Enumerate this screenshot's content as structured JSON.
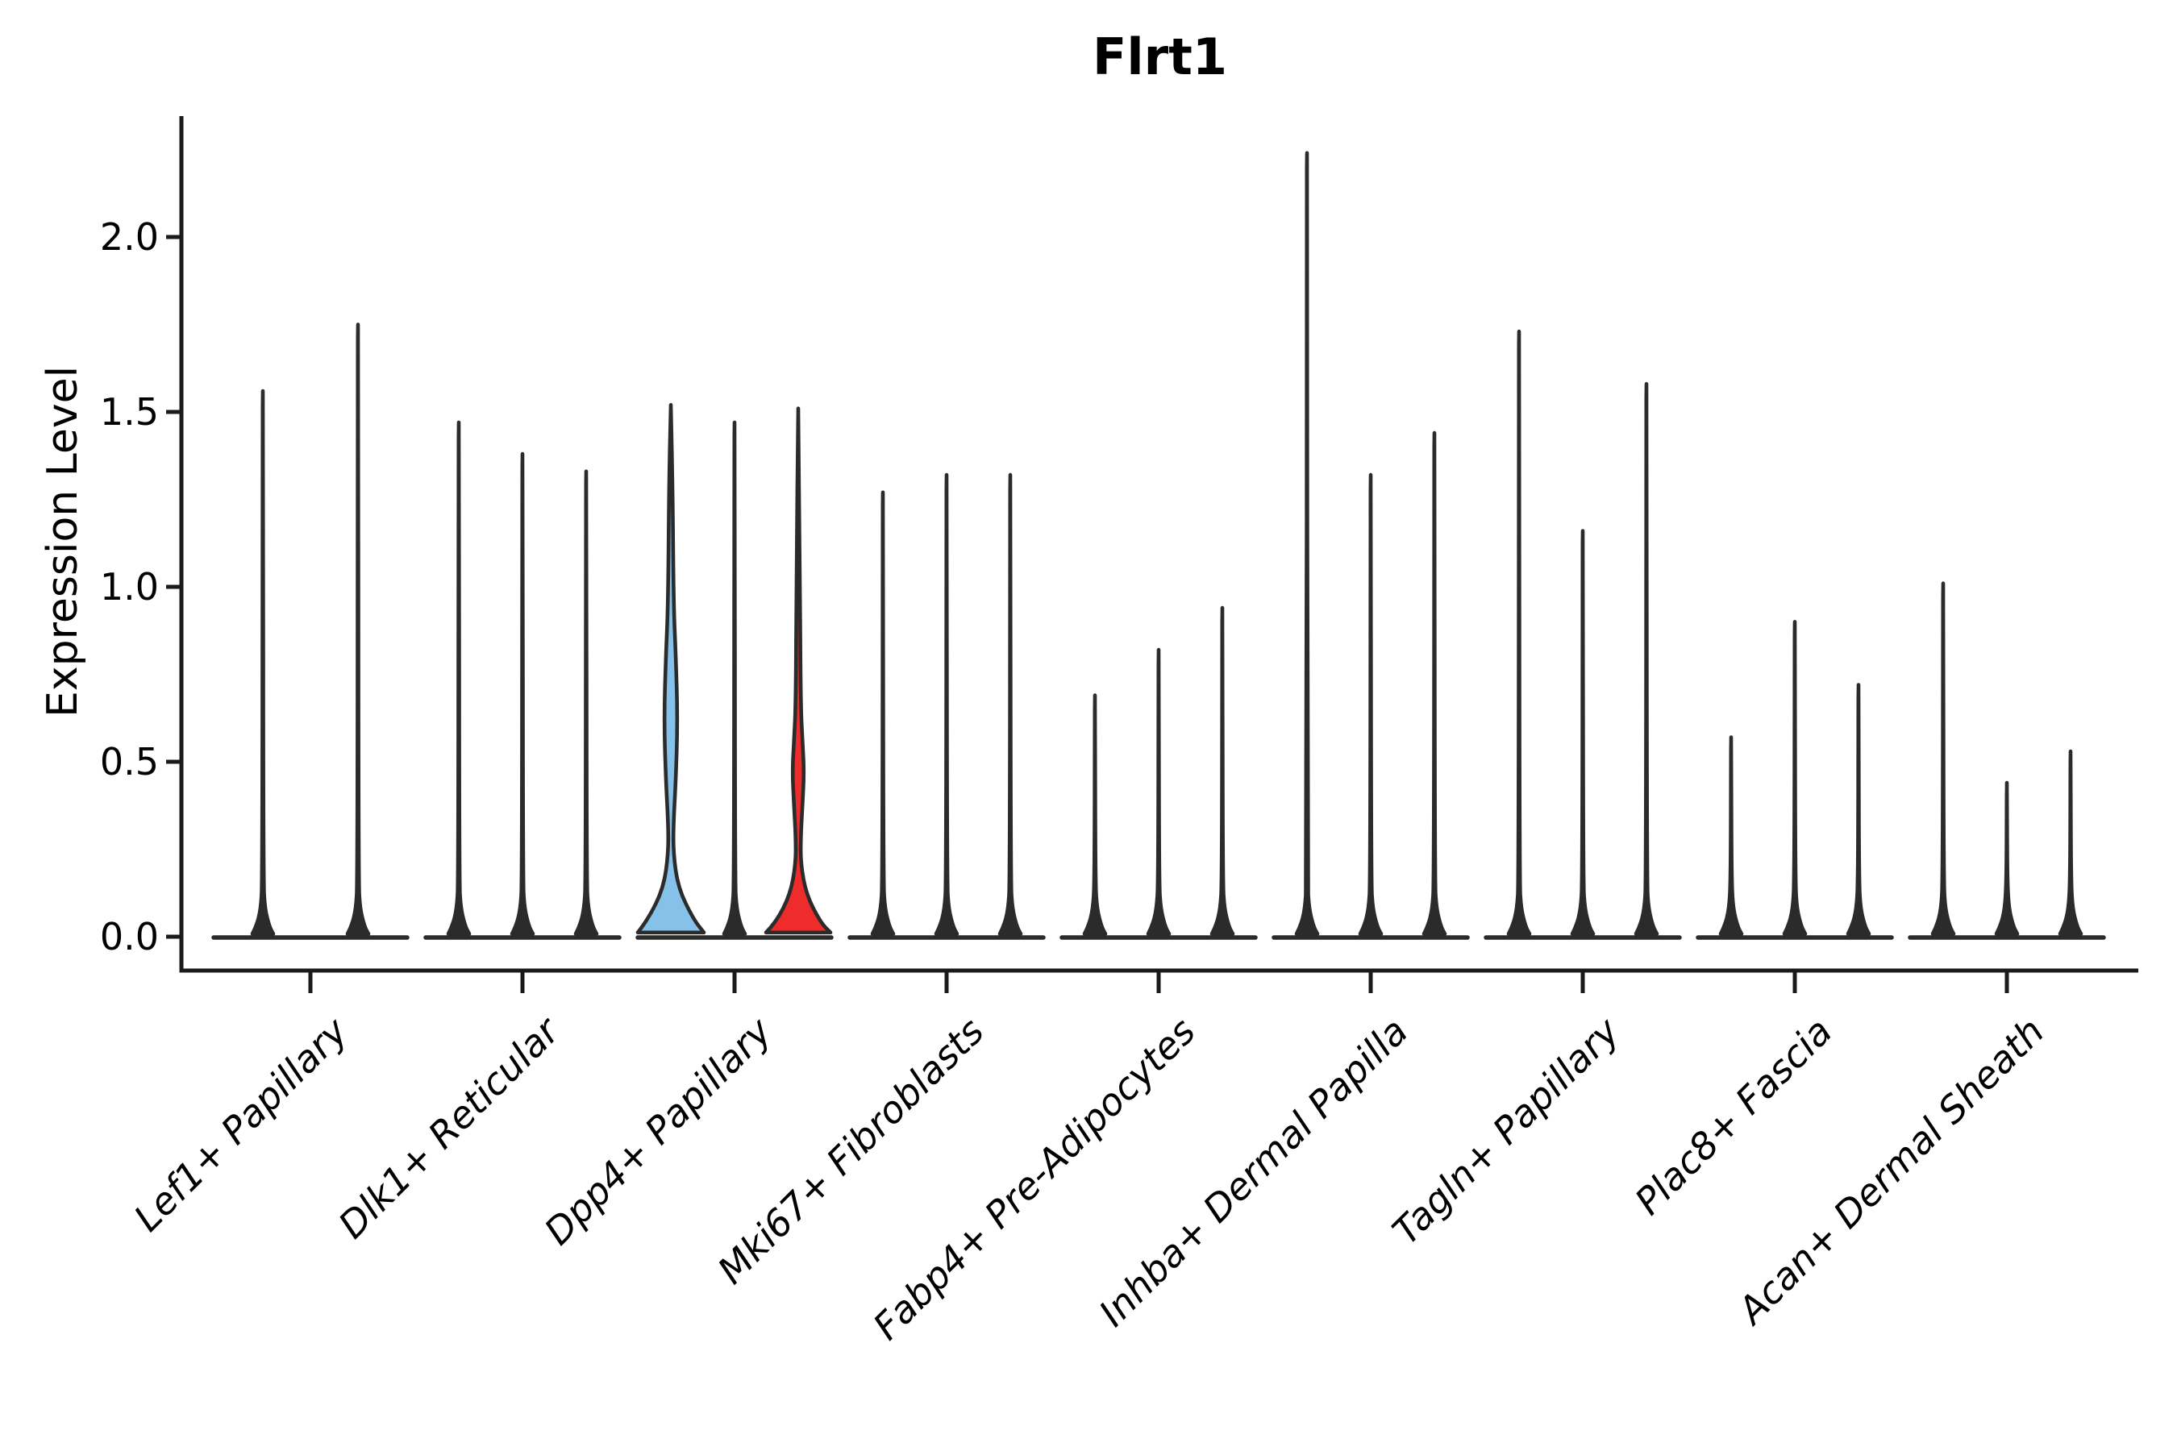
{
  "title": "Flrt1",
  "colors": {
    "background": "#ffffff",
    "axis": "#1a1a1a",
    "violin_outline": "#2b2b2b",
    "highlight_blue": "#85C1E9",
    "highlight_red": "#EE2C2C"
  },
  "chart_data": {
    "type": "violin",
    "title": "Flrt1",
    "xlabel": "",
    "ylabel": "Expression Level",
    "ytick_labels": [
      "0.0",
      "0.5",
      "1.0",
      "1.5",
      "2.0"
    ],
    "ytick_values": [
      0,
      0.5,
      1.0,
      1.5,
      2.0
    ],
    "ylim": [
      -0.1,
      2.36
    ],
    "grid": "off",
    "legend": "none",
    "categories": [
      "Lef1+ Papillary",
      "Dlk1+ Reticular",
      "Dpp4+ Papillary",
      "Mki67+ Fibroblasts",
      "Fabp4+ Pre-Adipocytes",
      "Inhba+ Dermal Papilla",
      "Tagln+ Papillary",
      "Plac8+ Fascia",
      "Acan+ Dermal Sheath"
    ],
    "groups": [
      {
        "violins": [
          {
            "max": 1.56
          },
          {
            "max": 1.75
          }
        ]
      },
      {
        "violins": [
          {
            "max": 1.47
          },
          {
            "max": 1.38
          },
          {
            "max": 1.33
          }
        ]
      },
      {
        "violins": [
          {
            "max": 1.52,
            "fill_color": "#85C1E9",
            "profile": [
              [
                1.52,
                0.001
              ],
              [
                1.3,
                2.2
              ],
              [
                0.95,
                3.4
              ],
              [
                0.8,
                6.2
              ],
              [
                0.62,
                8.4
              ],
              [
                0.45,
                6.2
              ],
              [
                0.33,
                3.4
              ],
              [
                0.24,
                3.0
              ],
              [
                0.14,
                9
              ],
              [
                0.05,
                28
              ],
              [
                0.012,
                41
              ]
            ]
          },
          {
            "max": 1.47
          },
          {
            "max": 1.51,
            "fill_color": "#EE2C2C",
            "profile": [
              [
                1.51,
                0.001
              ],
              [
                1.05,
                2.2
              ],
              [
                0.66,
                3.0
              ],
              [
                0.55,
                5.6
              ],
              [
                0.47,
                7.2
              ],
              [
                0.38,
                5.4
              ],
              [
                0.29,
                3.2
              ],
              [
                0.21,
                3.0
              ],
              [
                0.12,
                10
              ],
              [
                0.04,
                28
              ],
              [
                0.012,
                40
              ]
            ]
          }
        ]
      },
      {
        "violins": [
          {
            "max": 1.27
          },
          {
            "max": 1.32
          },
          {
            "max": 1.32
          }
        ]
      },
      {
        "violins": [
          {
            "max": 0.69
          },
          {
            "max": 0.82
          },
          {
            "max": 0.94
          }
        ]
      },
      {
        "violins": [
          {
            "max": 2.24
          },
          {
            "max": 1.32
          },
          {
            "max": 1.44
          }
        ]
      },
      {
        "violins": [
          {
            "max": 1.73
          },
          {
            "max": 1.16
          },
          {
            "max": 1.58
          }
        ]
      },
      {
        "violins": [
          {
            "max": 0.57
          },
          {
            "max": 0.9
          },
          {
            "max": 0.72
          }
        ]
      },
      {
        "violins": [
          {
            "max": 1.01
          },
          {
            "max": 0.44
          },
          {
            "max": 0.53
          }
        ]
      }
    ]
  }
}
